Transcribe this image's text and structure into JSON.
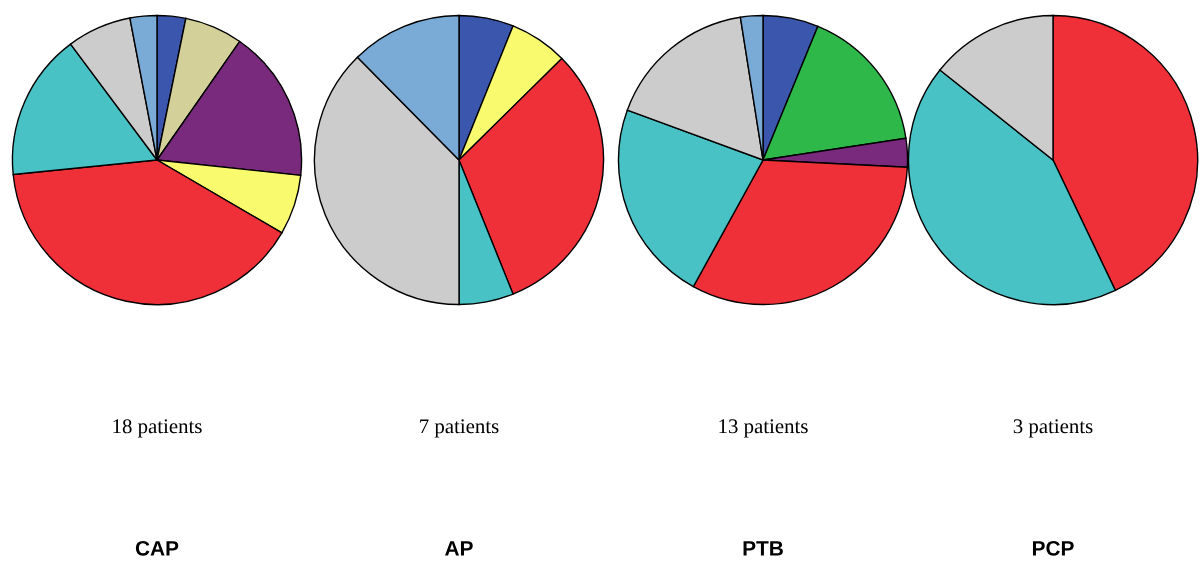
{
  "chart_data": [
    {
      "type": "pie",
      "title": "CAP",
      "annotations": [
        "18 patients"
      ],
      "categories": [
        null,
        null,
        null,
        null,
        null,
        null,
        null,
        null
      ],
      "values": [
        3.2,
        6.5,
        17,
        6.7,
        40,
        16.4,
        7.2,
        3
      ],
      "colors": [
        "#3a56ad",
        "#d4d09a",
        "#7a2a7c",
        "#fafa6e",
        "#ef3038",
        "#49c2c6",
        "#cccccc",
        "#7aaad6"
      ]
    },
    {
      "type": "pie",
      "title": "AP",
      "annotations": [
        "7 patients"
      ],
      "categories": [
        null,
        null,
        null,
        null,
        null,
        null
      ],
      "values": [
        6.1,
        6.5,
        31.3,
        6.1,
        37.6,
        12.4
      ],
      "colors": [
        "#3a56ad",
        "#fafa6e",
        "#ef3038",
        "#49c2c6",
        "#cccccc",
        "#7aaad6"
      ]
    },
    {
      "type": "pie",
      "title": "PTB",
      "annotations": [
        "13 patients"
      ],
      "categories": [
        null,
        null,
        null,
        null,
        null,
        null,
        null
      ],
      "values": [
        6.2,
        16.4,
        3.2,
        32.2,
        22.6,
        16.9,
        2.5
      ],
      "colors": [
        "#3a56ad",
        "#2eb84a",
        "#7a2a7c",
        "#ef3038",
        "#49c2c6",
        "#cccccc",
        "#7aaad6"
      ]
    },
    {
      "type": "pie",
      "title": "PCP",
      "annotations": [
        "3 patients"
      ],
      "categories": [
        null,
        null,
        null
      ],
      "values": [
        42.9,
        42.8,
        14.3
      ],
      "colors": [
        "#ef3038",
        "#49c2c6",
        "#cccccc"
      ]
    }
  ]
}
